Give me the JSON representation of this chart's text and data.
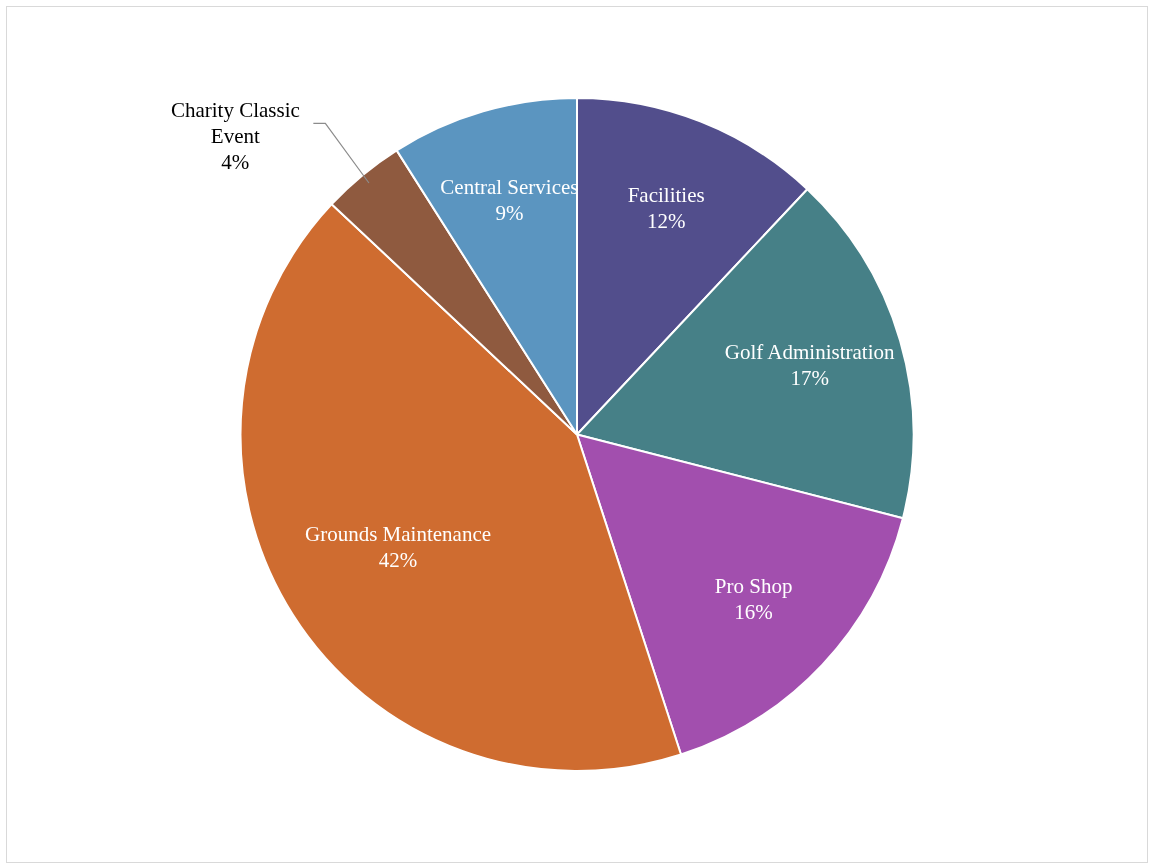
{
  "chart_data": {
    "type": "pie",
    "categories": [
      "Facilities",
      "Golf Administration",
      "Pro Shop",
      "Grounds Maintenance",
      "Charity Classic Event",
      "Central Services"
    ],
    "values": [
      12,
      17,
      16,
      42,
      4,
      9
    ],
    "colors": [
      "#524e8c",
      "#468087",
      "#a24fae",
      "#cf6c30",
      "#8f5a3f",
      "#5b95c0"
    ],
    "value_labels": [
      "12%",
      "17%",
      "16%",
      "42%",
      "4%",
      "9%"
    ],
    "legend": false
  }
}
